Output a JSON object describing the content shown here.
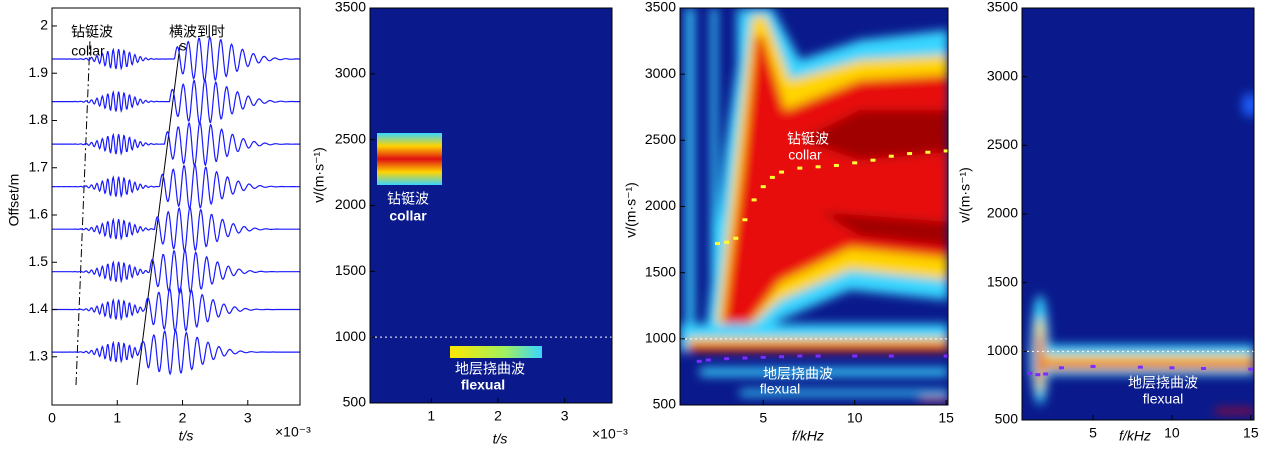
{
  "chart_data": [
    {
      "type": "waveform",
      "ylabel": "Offset/m",
      "xlabel": "t/s",
      "x_exponent": "×10⁻³",
      "offsets": [
        1.31,
        1.4,
        1.48,
        1.57,
        1.66,
        1.75,
        1.84,
        1.93
      ],
      "color": "#1a1aff",
      "xlim": [
        0,
        3.8
      ],
      "xticks": [
        0,
        1,
        2,
        3
      ],
      "ylim": [
        1.198,
        2.038
      ],
      "yticks": [
        1.3,
        1.4,
        1.5,
        1.6,
        1.7,
        1.8,
        1.9,
        2
      ],
      "annotations": [
        "钻铤波",
        "collar",
        "横波到时",
        "s"
      ]
    },
    {
      "type": "heatmap",
      "ylabel": "v/(m·s⁻¹)",
      "xlabel": "t/s",
      "x_exponent": "×10⁻³",
      "xlim": [
        0.08,
        3.71
      ],
      "xticks": [
        1,
        2,
        3
      ],
      "ylim": [
        500,
        3500
      ],
      "yticks": [
        500,
        1000,
        1500,
        2000,
        2500,
        3000,
        3500
      ],
      "hline": 1000,
      "annotations": [
        "钻铤波",
        "collar",
        "地层挠曲波",
        "flexual"
      ]
    },
    {
      "type": "heatmap",
      "ylabel": "v/(m·s⁻¹)",
      "xlabel": "f/kHz",
      "xlim": [
        0.45,
        15.1
      ],
      "xticks": [
        5,
        10,
        15
      ],
      "ylim": [
        500,
        3500
      ],
      "yticks": [
        500,
        1000,
        1500,
        2000,
        2500,
        3000,
        3500
      ],
      "hline": 1000,
      "annotations": [
        "钻铤波",
        "collar",
        "地层挠曲波",
        "flexual"
      ],
      "series": [
        {
          "color": "#ffff33",
          "x": [
            2.5,
            3,
            3.5,
            4,
            4.5,
            5,
            5.5,
            6,
            7,
            8,
            9,
            10,
            11,
            12,
            13,
            14,
            15
          ],
          "values": [
            1720,
            1730,
            1760,
            1900,
            2050,
            2150,
            2220,
            2260,
            2290,
            2300,
            2310,
            2330,
            2350,
            2380,
            2400,
            2410,
            2420
          ]
        },
        {
          "color": "#7b2cff",
          "x": [
            1.5,
            2,
            3,
            4,
            5,
            6,
            7,
            8,
            10,
            12,
            15
          ],
          "values": [
            830,
            840,
            850,
            855,
            860,
            865,
            870,
            870,
            870,
            870,
            870
          ]
        }
      ]
    },
    {
      "type": "heatmap",
      "ylabel": "v/(m·s⁻¹)",
      "xlabel": "f/kHz",
      "xlim": [
        0.5,
        15.2
      ],
      "xticks": [
        5,
        10,
        15
      ],
      "ylim": [
        500,
        3500
      ],
      "yticks": [
        500,
        1000,
        1500,
        2000,
        2500,
        3000,
        3500
      ],
      "hline": 1000,
      "annotations": [
        "地层挠曲波",
        "flexual"
      ],
      "series": [
        {
          "color": "#7b2cff",
          "x": [
            1,
            1.5,
            2,
            3,
            5,
            8,
            10,
            12,
            15
          ],
          "values": [
            840,
            830,
            835,
            880,
            890,
            885,
            880,
            875,
            870
          ]
        }
      ]
    }
  ]
}
